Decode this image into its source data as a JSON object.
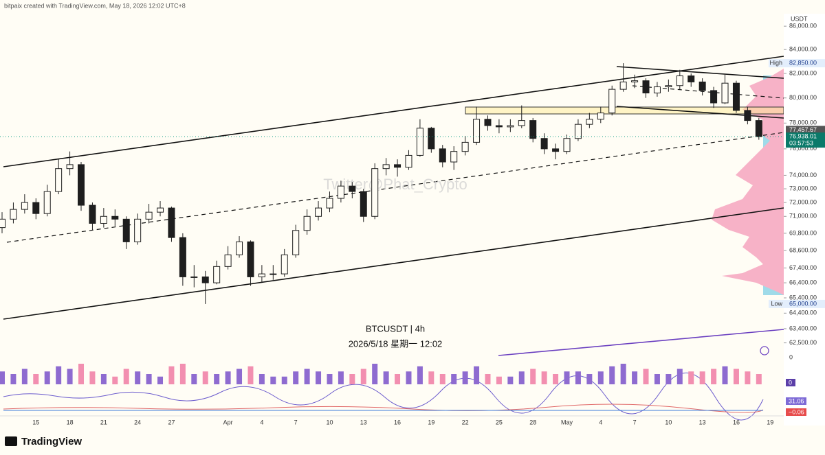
{
  "header": {
    "credit": "bitpaix created with TradingView.com, May 18, 2026 12:02 UTC+8",
    "currency": "USDT"
  },
  "watermark": "Twitter@Phat_Crypto",
  "legend": {
    "symbol": "BTCUSDT | 4h",
    "datetime": "2026/5/18 星期一 12:02"
  },
  "price_tags": [
    {
      "label": "High",
      "value": {
        "value": 82850,
        "label": "82,850.00"
      }
    },
    {
      "label": "Low",
      "value": {
        "value": 65000,
        "label": "65,000.00"
      }
    }
  ],
  "last_price": {
    "value": 77457.67,
    "label": "77,457.67"
  },
  "mark_price": {
    "value": 76938.01,
    "label": "76,938.01"
  },
  "countdown": "03:57:53",
  "panes": {
    "volume_axis": "0",
    "volume_value": "0",
    "oscillator_value": "31.06",
    "oscillator_value_2": "−0.06"
  },
  "footer": {
    "logo": "TradingView"
  },
  "chart_data": {
    "type": "candlestick",
    "log_scale": true,
    "grid": false,
    "up_color": "#fffdf5",
    "down_color": "#1e1e1e",
    "wick_color": "#1e1e1e",
    "volume_up_color": "#8e6bd0",
    "volume_down_color": "#f28fb0",
    "categories": [
      null,
      null,
      null,
      "15",
      null,
      null,
      "18",
      null,
      null,
      "21",
      null,
      null,
      "24",
      null,
      null,
      "27",
      null,
      null,
      null,
      null,
      "Apr",
      null,
      null,
      "4",
      null,
      null,
      "7",
      null,
      null,
      "10",
      null,
      null,
      "13",
      null,
      null,
      "16",
      null,
      null,
      "19",
      null,
      null,
      "22",
      null,
      null,
      "25",
      null,
      null,
      "28",
      null,
      null,
      "May",
      null,
      null,
      "4",
      null,
      null,
      "7",
      null,
      null,
      "10",
      null,
      null,
      "13",
      null,
      null,
      "16",
      null,
      null,
      "19"
    ],
    "open": [
      70200,
      70800,
      71500,
      72000,
      71200,
      72800,
      74500,
      74800,
      71800,
      70500,
      71000,
      70800,
      69200,
      70800,
      71300,
      71600,
      69500,
      66800,
      66800,
      66400,
      67500,
      68300,
      69200,
      66800,
      67000,
      67000,
      68300,
      70000,
      71000,
      71600,
      72300,
      73200,
      72800,
      71000,
      74500,
      74800,
      74600,
      75500,
      77600,
      76000,
      75000,
      75800,
      76500,
      78300,
      77800,
      77700,
      77800,
      78200,
      76800,
      76000,
      75800,
      76800,
      77900,
      78300,
      78800,
      80700,
      81300,
      81400,
      80400,
      80900,
      81000,
      81800,
      81300,
      80600,
      79600,
      81200,
      79000,
      78200,
      null
    ],
    "high": [
      71300,
      72000,
      72600,
      72300,
      73300,
      75200,
      75800,
      75000,
      72000,
      71600,
      71500,
      71000,
      71200,
      71900,
      72100,
      71700,
      69800,
      67600,
      67200,
      67900,
      68900,
      69600,
      69300,
      67600,
      67600,
      68700,
      70400,
      71500,
      72100,
      72800,
      73600,
      73500,
      73000,
      74900,
      75300,
      75200,
      75900,
      78300,
      77700,
      76300,
      76200,
      77000,
      79300,
      78600,
      78300,
      78300,
      79400,
      78400,
      77200,
      76400,
      77100,
      78300,
      78800,
      79300,
      81000,
      82850,
      81900,
      81600,
      81300,
      81500,
      82300,
      82000,
      81600,
      80900,
      81900,
      81400,
      79300,
      78400,
      null
    ],
    "low": [
      69800,
      70500,
      71200,
      70800,
      71000,
      72600,
      74000,
      71400,
      70000,
      70200,
      70300,
      68700,
      69000,
      70500,
      71000,
      69200,
      66200,
      66100,
      65000,
      66300,
      67300,
      68100,
      66200,
      66400,
      66600,
      66800,
      68100,
      69700,
      70700,
      71300,
      72000,
      72300,
      70600,
      70800,
      74000,
      73900,
      74400,
      75400,
      75700,
      74600,
      74400,
      75500,
      76300,
      77400,
      77200,
      77300,
      77600,
      76500,
      75600,
      75200,
      75600,
      76600,
      77600,
      78000,
      78600,
      80500,
      80800,
      80000,
      80100,
      80500,
      80700,
      80900,
      80200,
      79200,
      79500,
      78800,
      77900,
      76700,
      null
    ],
    "close": [
      70800,
      71500,
      72000,
      71200,
      72800,
      74500,
      74800,
      71800,
      70500,
      71000,
      70800,
      69200,
      70800,
      71300,
      71600,
      69500,
      66800,
      66800,
      66400,
      67500,
      68300,
      69200,
      66800,
      67000,
      67000,
      68300,
      70000,
      71000,
      71600,
      72300,
      73200,
      72800,
      71000,
      74500,
      74800,
      74600,
      75500,
      77600,
      76000,
      75000,
      75800,
      76500,
      78300,
      77800,
      77700,
      77800,
      78200,
      76800,
      76000,
      75800,
      76800,
      77900,
      78300,
      78800,
      80700,
      81300,
      81400,
      80400,
      80900,
      81000,
      81800,
      81300,
      80600,
      79600,
      81200,
      79000,
      78200,
      76938.01,
      null
    ],
    "volume": [
      5,
      4,
      6,
      4,
      5,
      7,
      6,
      8,
      5,
      4,
      3,
      6,
      5,
      4,
      3,
      7,
      8,
      4,
      5,
      4,
      5,
      6,
      7,
      4,
      3,
      3,
      5,
      6,
      5,
      4,
      5,
      4,
      6,
      8,
      5,
      4,
      5,
      7,
      5,
      4,
      4,
      5,
      7,
      4,
      3,
      3,
      5,
      6,
      5,
      4,
      5,
      5,
      4,
      5,
      7,
      8,
      5,
      6,
      4,
      4,
      6,
      5,
      5,
      6,
      7,
      6,
      5,
      4,
      null
    ],
    "ylim": [
      61200,
      88300
    ],
    "yticks": [
      {
        "value": 86000,
        "label": "86,000.00"
      },
      {
        "value": 84000,
        "label": "84,000.00"
      },
      {
        "value": 82000,
        "label": "82,000.00"
      },
      {
        "value": 80000,
        "label": "80,000.00"
      },
      {
        "value": 78000,
        "label": "78,000.00"
      },
      {
        "value": 76000,
        "label": "76,000.00"
      },
      {
        "value": 74000,
        "label": "74,000.00"
      },
      {
        "value": 73000,
        "label": "73,000.00"
      },
      {
        "value": 72000,
        "label": "72,000.00"
      },
      {
        "value": 71000,
        "label": "71,000.00"
      },
      {
        "value": 69800,
        "label": "69,800.00"
      },
      {
        "value": 68600,
        "label": "68,600.00"
      },
      {
        "value": 67400,
        "label": "67,400.00"
      },
      {
        "value": 66400,
        "label": "66,400.00"
      },
      {
        "value": 65400,
        "label": "65,400.00"
      },
      {
        "value": 64400,
        "label": "64,400.00"
      },
      {
        "value": 63400,
        "label": "63,400.00"
      },
      {
        "value": 62500,
        "label": "62,500.00"
      }
    ]
  }
}
